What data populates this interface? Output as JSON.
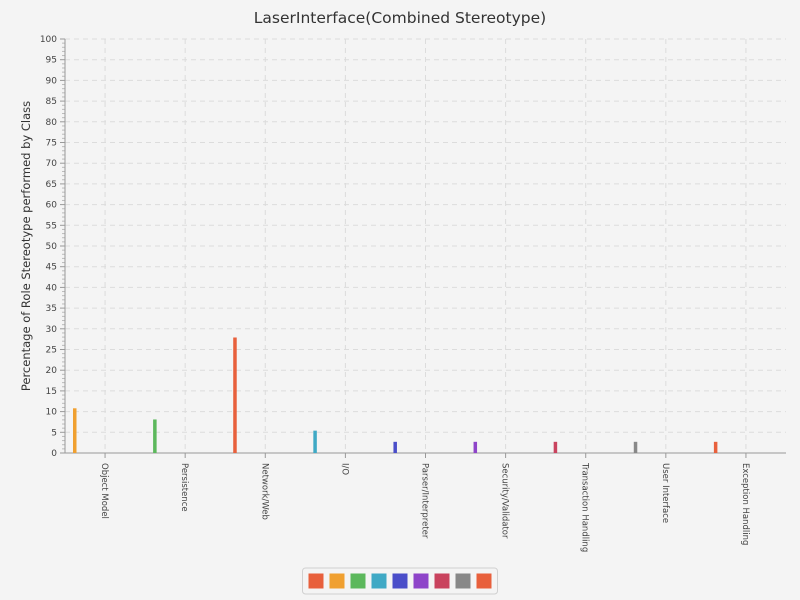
{
  "chart_data": {
    "type": "bar",
    "title": "LaserInterface(Combined Stereotype)",
    "xlabel": "",
    "ylabel": "Percentage of Role Stereotype performed by Class",
    "ylim": [
      0,
      100
    ],
    "ytick_step": 5,
    "grid": true,
    "legend": "bottom-center",
    "categories": [
      "Object Model",
      "Persistence",
      "Network/Web",
      "I/O",
      "Parser/Interpreter",
      "Security/Validator",
      "Transaction Handling",
      "User Interface",
      "Exception Handling"
    ],
    "values": [
      10.8,
      8.1,
      27.9,
      5.4,
      2.7,
      2.7,
      2.7,
      2.7,
      2.7
    ],
    "colors": [
      "#f0a030",
      "#5cb85c",
      "#e8603c",
      "#3fa9c5",
      "#4a4ec9",
      "#8e44c9",
      "#c9435e",
      "#888888",
      "#e8603c"
    ],
    "legend_colors": [
      "#e8603c",
      "#f0a030",
      "#5cb85c",
      "#3fa9c5",
      "#4a4ec9",
      "#8e44c9",
      "#c9435e",
      "#888888",
      "#e8603c"
    ]
  }
}
